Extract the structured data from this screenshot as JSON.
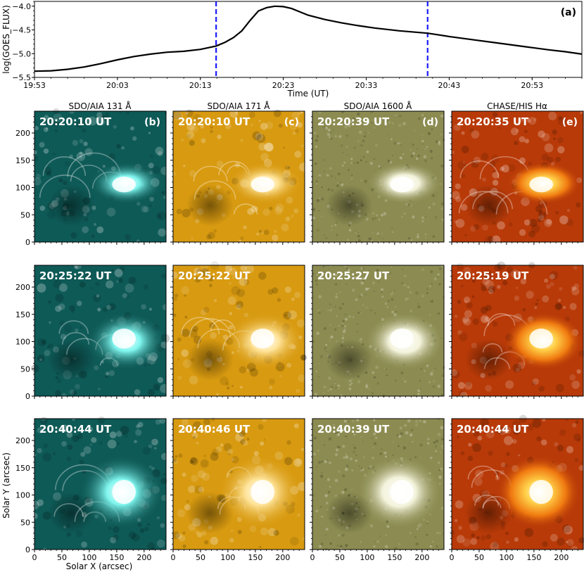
{
  "lightcurve": {
    "panel_label": "(a)",
    "ylabel": "log(GOES_FLUX)",
    "xlabel": "Time (UT)",
    "ylim": [
      -5.5,
      -3.9
    ],
    "yticks": [
      -4.0,
      -4.5,
      -5.0,
      -5.5
    ],
    "ytick_labels": [
      "−4.0",
      "−4.5",
      "−5.0",
      "−5.5"
    ],
    "xlim_min": [
      0,
      66
    ],
    "xticks_min": [
      0,
      10,
      20,
      30,
      40,
      50,
      60
    ],
    "xtick_labels": [
      "19:53",
      "20:03",
      "20:13",
      "20:23",
      "20:33",
      "20:43",
      "20:53"
    ],
    "vlines_min": [
      21.9,
      47.4
    ],
    "vline_color": "#1a1aff",
    "line_color": "#000000",
    "curve_min": [
      0,
      2,
      4,
      6,
      8,
      10,
      12,
      14,
      16,
      18,
      20,
      21.9,
      23,
      24,
      25,
      26,
      27,
      28,
      29,
      30,
      31,
      32,
      33,
      35,
      37,
      39,
      41,
      44,
      47.4,
      50,
      53,
      56,
      59,
      62,
      64,
      66
    ],
    "curve_val": [
      -5.37,
      -5.36,
      -5.33,
      -5.28,
      -5.21,
      -5.13,
      -5.06,
      -5.01,
      -4.97,
      -4.95,
      -4.91,
      -4.84,
      -4.76,
      -4.66,
      -4.52,
      -4.3,
      -4.1,
      -4.03,
      -4.0,
      -4.01,
      -4.05,
      -4.12,
      -4.19,
      -4.28,
      -4.35,
      -4.41,
      -4.46,
      -4.52,
      -4.57,
      -4.64,
      -4.71,
      -4.78,
      -4.85,
      -4.92,
      -4.96,
      -5.01
    ]
  },
  "panels": {
    "column_titles": [
      "SDO/AIA 131 Å",
      "SDO/AIA 171 Å",
      "SDO/AIA 1600 Å",
      "CHASE/HIS Hα"
    ],
    "column_labels": [
      "(b)",
      "(c)",
      "(d)",
      "(e)"
    ],
    "column_colors": [
      "#0e5a57",
      "#d89a10",
      "#8c8c52",
      "#b83a08"
    ],
    "timestamps": [
      [
        "20:20:10 UT",
        "20:20:10 UT",
        "20:20:39 UT",
        "20:20:35 UT"
      ],
      [
        "20:25:22 UT",
        "20:25:22 UT",
        "20:25:27 UT",
        "20:25:19 UT"
      ],
      [
        "20:40:44 UT",
        "20:40:46 UT",
        "20:40:39 UT",
        "20:40:44 UT"
      ]
    ],
    "axis_range": [
      0,
      240
    ],
    "ticks": [
      0,
      50,
      100,
      150,
      200
    ],
    "y_tick_labels": [
      "0",
      "50",
      "100",
      "150",
      "200"
    ],
    "x_tick_labels": [
      "0",
      "50",
      "100",
      "150",
      "200"
    ],
    "xlabel": "Solar X (arcsec)",
    "ylabel": "Solar Y (arcsec)"
  }
}
